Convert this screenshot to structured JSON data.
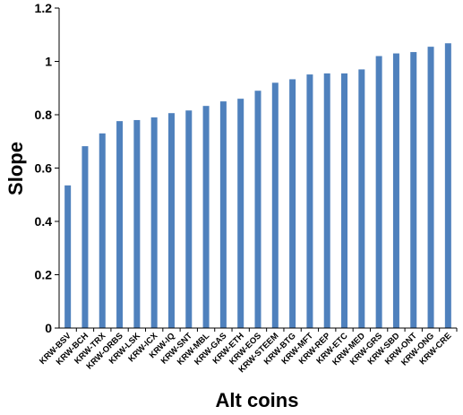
{
  "chart_data": {
    "type": "bar",
    "title": "",
    "xlabel": "Alt coins",
    "ylabel": "Slope",
    "ylim": [
      0,
      1.2
    ],
    "yticks": [
      "0",
      "0.2",
      "0.4",
      "0.6",
      "0.8",
      "1",
      "1.2"
    ],
    "categories": [
      "KRW-BSV",
      "KRW-BCH",
      "KRW-TRX",
      "KRW-ORBS",
      "KRW-LSK",
      "KRW-ICX",
      "KRW-IQ",
      "KRW-SNT",
      "KRW-MBL",
      "KRW-GAS",
      "KRW-ETH",
      "KRW-EOS",
      "KRW-STEEM",
      "KRW-BTG",
      "KRW-MFT",
      "KRW-REP",
      "KRW-ETC",
      "KRW-MED",
      "KRW-GRS",
      "KRW-SBD",
      "KRW-ONT",
      "KRW-ONG",
      "KRW-CRE"
    ],
    "values": [
      0.535,
      0.682,
      0.73,
      0.776,
      0.78,
      0.79,
      0.806,
      0.816,
      0.833,
      0.85,
      0.86,
      0.89,
      0.92,
      0.933,
      0.951,
      0.955,
      0.955,
      0.97,
      1.02,
      1.03,
      1.035,
      1.055,
      1.068
    ],
    "bar_color": "#4F81BD",
    "grid": false,
    "legend": "none"
  }
}
